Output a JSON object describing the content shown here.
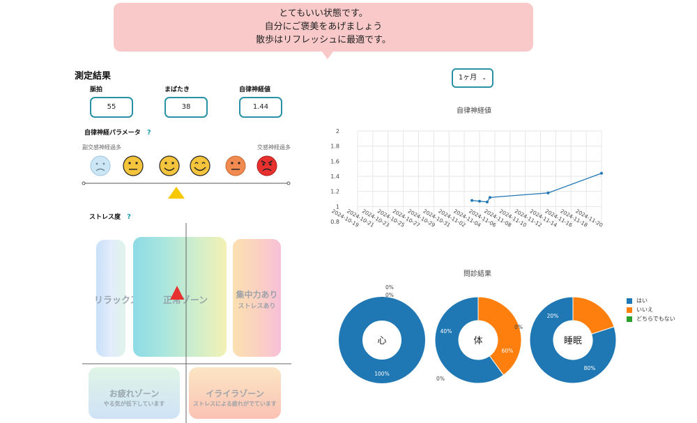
{
  "bubble": {
    "line1": "とてもいい状態です。",
    "line2": "自分にご褒美をあげましょう",
    "line3": "散歩はリフレッシュに最適です。"
  },
  "results": {
    "title": "測定結果",
    "pulse_label": "脈拍",
    "pulse_value": "55",
    "blink_label": "まばたき",
    "blink_value": "38",
    "ans_label": "自律神経値",
    "ans_value": "1.44"
  },
  "ans_params": {
    "title": "自律神経パラメータ",
    "help": "?",
    "left_label": "副交感神経過多",
    "right_label": "交感神経過多",
    "faces": [
      {
        "icon": "sad-blue-face-icon",
        "color": "#cde6f5"
      },
      {
        "icon": "neutral-face-icon",
        "color": "#f4c43c"
      },
      {
        "icon": "smile-face-icon",
        "color": "#f4c43c"
      },
      {
        "icon": "happy-face-icon",
        "color": "#f4c43c"
      },
      {
        "icon": "frown-face-icon",
        "color": "#f08a50"
      },
      {
        "icon": "angry-face-icon",
        "color": "#e8302e"
      }
    ],
    "marker_color": "#f5c800"
  },
  "stress": {
    "title": "ストレス度",
    "help": "?",
    "relax": "リラックス",
    "normal": "正常ゾーン",
    "focus": "集中力あり",
    "focus_sub": "ストレスあり",
    "tired": "お疲れゾーン",
    "tired_sub": "やる気が低下しています",
    "irritated": "イライラゾーン",
    "irritated_sub": "ストレスによる疲れがでています",
    "marker_color": "#e8302e"
  },
  "period": {
    "selected": "1ヶ月"
  },
  "line_chart": {
    "title": "自律神経値",
    "type": "line",
    "ylim": [
      0.8,
      2
    ],
    "yticks": [
      "2",
      "1.8",
      "1.6",
      "1.4",
      "1.2",
      "1",
      "0.8"
    ],
    "xticks": [
      "2024-10-19",
      "2024-10-21",
      "2024-10-23",
      "2024-10-25",
      "2024-10-27",
      "2024-10-29",
      "2024-10-31",
      "2024-11-02",
      "2024-11-04",
      "2024-11-06",
      "2024-11-08",
      "2024-11-10",
      "2024-11-12",
      "2024-11-14",
      "2024-11-16",
      "2024-11-18",
      "2024-11-20"
    ],
    "points": [
      {
        "x": "2024-11-03",
        "y": 1.08
      },
      {
        "x": "2024-11-04",
        "y": 1.07
      },
      {
        "x": "2024-11-05",
        "y": 1.06
      },
      {
        "x": "2024-11-05",
        "y": 1.12
      },
      {
        "x": "2024-11-13",
        "y": 1.18
      },
      {
        "x": "2024-11-20",
        "y": 1.44
      }
    ],
    "color": "#1f77b4"
  },
  "chart_data": [
    {
      "type": "line",
      "title": "自律神経値",
      "x": [
        "2024-11-03",
        "2024-11-04",
        "2024-11-05",
        "2024-11-05",
        "2024-11-13",
        "2024-11-20"
      ],
      "y": [
        1.08,
        1.07,
        1.06,
        1.12,
        1.18,
        1.44
      ],
      "ylim": [
        0.8,
        2
      ]
    },
    {
      "type": "pie",
      "title": "問診結果",
      "charts": [
        {
          "center": "心",
          "values": [
            100,
            0,
            0
          ],
          "labels": [
            "100%",
            "0%",
            "0%"
          ]
        },
        {
          "center": "体",
          "values": [
            60,
            40,
            0
          ],
          "labels": [
            "60%",
            "40%",
            "0%"
          ]
        },
        {
          "center": "睡眠",
          "values": [
            80,
            20,
            0
          ],
          "labels": [
            "80%",
            "20%",
            "0%"
          ]
        }
      ],
      "legend": [
        "はい",
        "いいえ",
        "どちらでもない"
      ],
      "legend_position": "right",
      "colors": [
        "#1f77b4",
        "#ff7f0e",
        "#2ca02c"
      ]
    }
  ],
  "donuts": {
    "title": "問診結果",
    "legend": [
      {
        "label": "はい",
        "color": "#1f77b4"
      },
      {
        "label": "いいえ",
        "color": "#ff7f0e"
      },
      {
        "label": "どちらでもない",
        "color": "#2ca02c"
      }
    ],
    "charts": [
      {
        "center": "心",
        "values": [
          100,
          0,
          0
        ],
        "labels": [
          "100%",
          "0%",
          "0%"
        ]
      },
      {
        "center": "体",
        "values": [
          60,
          40,
          0
        ],
        "labels": [
          "60%",
          "40%",
          "0%"
        ]
      },
      {
        "center": "睡眠",
        "values": [
          80,
          20,
          0
        ],
        "labels": [
          "80%",
          "20%",
          "0%"
        ]
      }
    ]
  }
}
